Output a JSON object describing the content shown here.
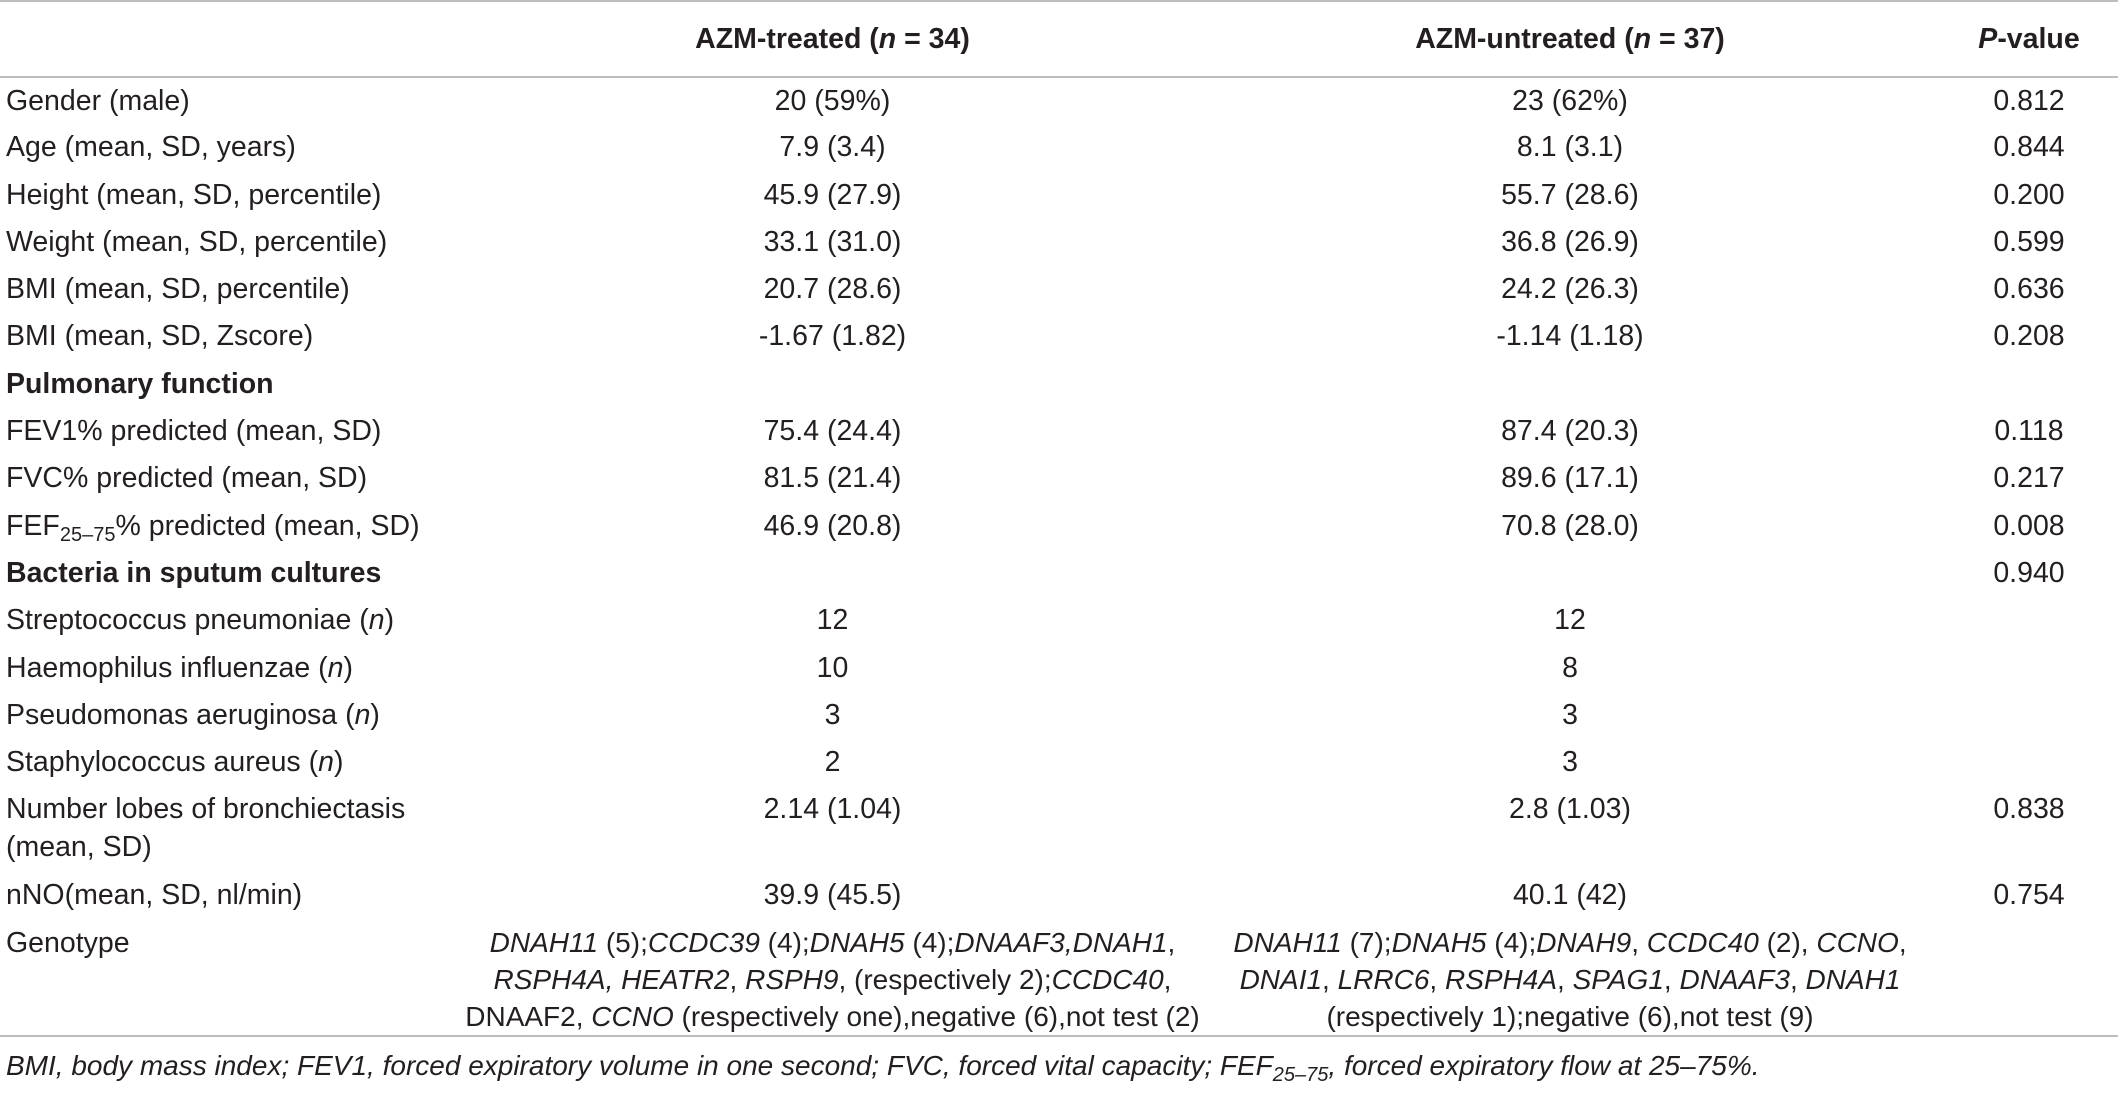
{
  "header": {
    "col0": "",
    "col1_pre": "AZM-treated (",
    "col1_n": "n",
    "col1_post": " = 34)",
    "col2_pre": "AZM-untreated (",
    "col2_n": "n",
    "col2_post": " = 37)",
    "col3_p": "P",
    "col3_post": "-value"
  },
  "rows": {
    "gender": {
      "label": "Gender (male)",
      "treated": "20 (59%)",
      "untreated": "23 (62%)",
      "p": "0.812"
    },
    "age": {
      "label": "Age (mean, SD, years)",
      "treated": "7.9 (3.4)",
      "untreated": "8.1 (3.1)",
      "p": "0.844"
    },
    "height": {
      "label": "Height (mean, SD, percentile)",
      "treated": "45.9 (27.9)",
      "untreated": "55.7 (28.6)",
      "p": "0.200"
    },
    "weight": {
      "label": "Weight (mean, SD, percentile)",
      "treated": "33.1 (31.0)",
      "untreated": "36.8 (26.9)",
      "p": "0.599"
    },
    "bmi_pct": {
      "label": "BMI (mean, SD, percentile)",
      "treated": "20.7 (28.6)",
      "untreated": "24.2 (26.3)",
      "p": "0.636"
    },
    "bmi_z": {
      "label": "BMI (mean, SD, Zscore)",
      "treated": "-1.67 (1.82)",
      "untreated": "-1.14 (1.18)",
      "p": "0.208"
    },
    "pulm_section": {
      "label": "Pulmonary function"
    },
    "fev1": {
      "label": "FEV1% predicted (mean, SD)",
      "treated": "75.4 (24.4)",
      "untreated": "87.4 (20.3)",
      "p": "0.118"
    },
    "fvc": {
      "label": "FVC% predicted (mean, SD)",
      "treated": "81.5 (21.4)",
      "untreated": "89.6 (17.1)",
      "p": "0.217"
    },
    "fef": {
      "label_pre": "FEF",
      "label_sub": "25–75",
      "label_post": "% predicted (mean, SD)",
      "treated": "46.9 (20.8)",
      "untreated": "70.8 (28.0)",
      "p": "0.008"
    },
    "bact_section": {
      "label": "Bacteria in sputum cultures",
      "p": "0.940"
    },
    "strep": {
      "label_pre": "Streptococcus pneumoniae (",
      "label_n": "n",
      "label_post": ")",
      "treated": "12",
      "untreated": "12"
    },
    "haem": {
      "label_pre": "Haemophilus influenzae (",
      "label_n": "n",
      "label_post": ")",
      "treated": "10",
      "untreated": "8"
    },
    "pseudo": {
      "label_pre": "Pseudomonas aeruginosa (",
      "label_n": "n",
      "label_post": ")",
      "treated": "3",
      "untreated": "3"
    },
    "staph": {
      "label_pre": "Staphylococcus aureus (",
      "label_n": "n",
      "label_post": ")",
      "treated": "2",
      "untreated": "3"
    },
    "lobes": {
      "label_line1": "Number lobes of bronchiectasis",
      "label_line2": "(mean, SD)",
      "treated": "2.14 (1.04)",
      "untreated": "2.8 (1.03)",
      "p": "0.838"
    },
    "nno": {
      "label": "nNO(mean, SD, nl/min)",
      "treated": "39.9 (45.5)",
      "untreated": "40.1 (42)",
      "p": "0.754"
    },
    "genotype": {
      "label": "Genotype",
      "treated": {
        "g1": "DNAH11",
        "t1": " (5);",
        "g2": "CCDC39",
        "t2": " (4);",
        "g3": "DNAH5",
        "t3": " (4);",
        "g4": "DNAAF3,DNAH1",
        "t4": ",",
        "g5": "RSPH4A, HEATR2",
        "t5": ", ",
        "g6": "RSPH9",
        "t6": ", (respectively 2);",
        "g7": "CCDC40",
        "t7": ",",
        "t8": "DNAAF2, ",
        "g8": "CCNO",
        "t9": " (respectively one),negative (6),not test (2)"
      },
      "untreated": {
        "g1": "DNAH11",
        "t1": " (7);",
        "g2": "DNAH5",
        "t2": " (4);",
        "g3": "DNAH9",
        "t3": ", ",
        "g4": "CCDC40",
        "t4": " (2), ",
        "g5": "CCNO",
        "t5": ",",
        "g6": "DNAI1",
        "t6": ", ",
        "g7": "LRRC6",
        "t7": ", ",
        "g8": "RSPH4A",
        "t8": ", ",
        "g9": "SPAG1",
        "t9": ", ",
        "g10": "DNAAF3",
        "t10": ", ",
        "g11": "DNAH1",
        "t11": "(respectively 1);negative (6),not test (9)"
      }
    }
  },
  "footnote": {
    "pre": "BMI, body mass index; FEV1, forced expiratory volume in one second; FVC, forced vital capacity; FEF",
    "sub": "25–75",
    "post": ", forced expiratory flow at 25–75%."
  }
}
